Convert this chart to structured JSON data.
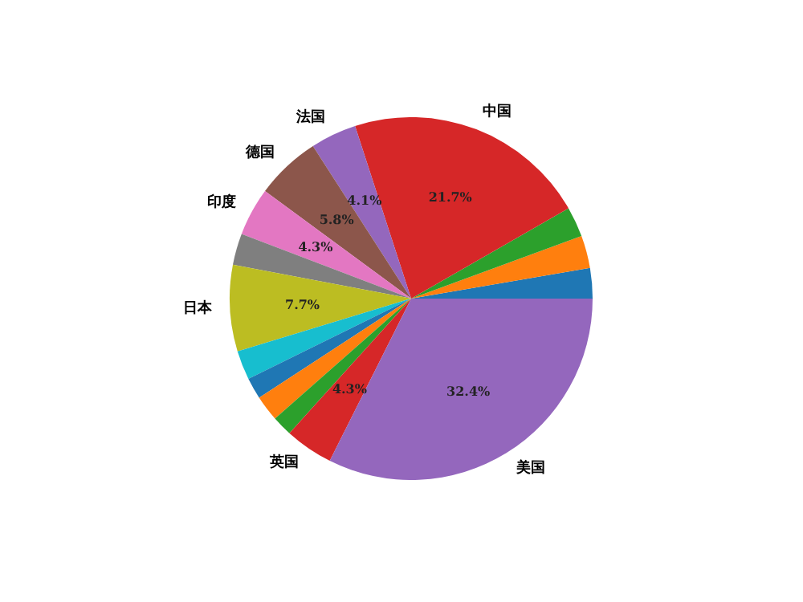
{
  "chart_data": {
    "type": "pie",
    "categories": [
      null,
      null,
      null,
      "中国",
      "法国",
      "德国",
      "印度",
      null,
      "日本",
      null,
      null,
      null,
      null,
      "英国",
      "美国"
    ],
    "values": [
      2.7,
      2.9,
      2.7,
      21.7,
      4.1,
      5.8,
      4.3,
      2.8,
      7.7,
      2.6,
      1.9,
      2.3,
      1.8,
      4.3,
      32.4
    ],
    "colors": [
      "#1f77b4",
      "#ff7f0e",
      "#2ca02c",
      "#d62728",
      "#9467bd",
      "#8c564b",
      "#e377c2",
      "#7f7f7f",
      "#bcbd22",
      "#17becf",
      "#1f77b4",
      "#ff7f0e",
      "#2ca02c",
      "#d62728",
      "#9467bd"
    ],
    "value_labels": [
      null,
      null,
      null,
      "21.7%",
      "4.1%",
      "5.8%",
      "4.3%",
      null,
      "7.7%",
      null,
      null,
      null,
      null,
      "4.3%",
      "32.4%"
    ]
  }
}
